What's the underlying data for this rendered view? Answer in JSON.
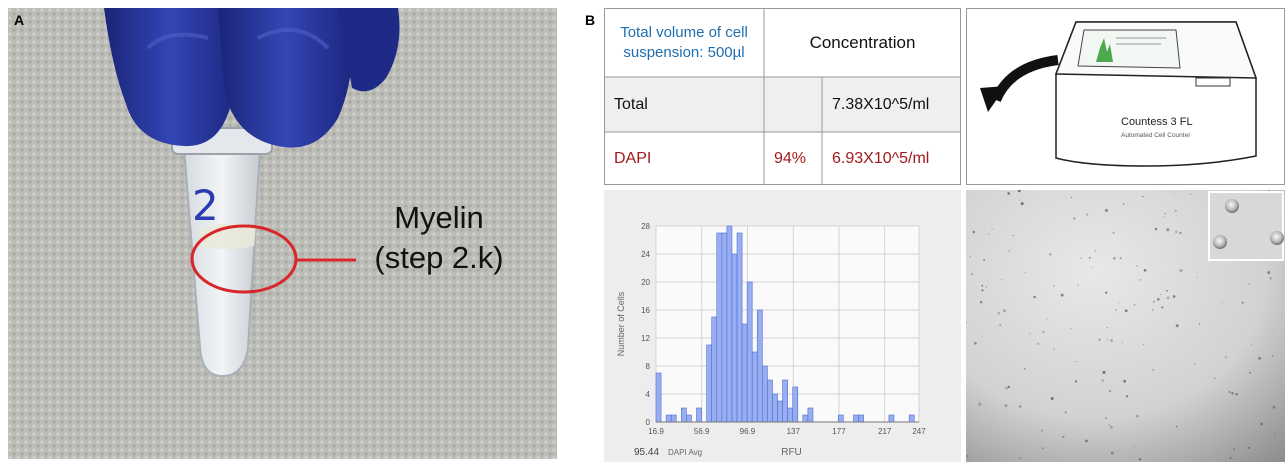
{
  "panels": {
    "a": "A",
    "b": "B"
  },
  "photo": {
    "annotation_line1": "Myelin",
    "annotation_line2": "(step 2.k)",
    "tube_label": "2"
  },
  "table": {
    "header_volume": "Total volume of cell suspension: 500µl",
    "header_concentration": "Concentration",
    "rows": [
      {
        "label": "Total",
        "percent": "",
        "value": "7.38X10^5/ml"
      },
      {
        "label": "DAPI",
        "percent": "94%",
        "value": "6.93X10^5/ml"
      }
    ]
  },
  "device": {
    "brand": "Countess",
    "model": "3 FL",
    "subtitle": "Automated Cell Counter"
  },
  "chart_data": {
    "type": "bar",
    "xlabel": "RFU",
    "ylabel": "Number of Cells",
    "ylim": [
      0,
      28
    ],
    "yticks": [
      "0",
      "4",
      "8",
      "12",
      "16",
      "20",
      "24",
      "28"
    ],
    "xticks": [
      "16.9",
      "56.9",
      "96.9",
      "137",
      "177",
      "217",
      "247"
    ],
    "xlim": [
      16.9,
      247
    ],
    "footer_value": "95.44",
    "footer_label": "DAPI Avg",
    "bin_width": 4.43,
    "values": [
      7,
      0,
      1,
      1,
      0,
      2,
      1,
      0,
      2,
      0,
      11,
      15,
      27,
      27,
      28,
      24,
      27,
      14,
      20,
      10,
      16,
      8,
      6,
      4,
      3,
      6,
      2,
      5,
      0,
      1,
      2,
      0,
      0,
      0,
      0,
      0,
      1,
      0,
      0,
      1,
      1,
      0,
      0,
      0,
      0,
      0,
      1,
      0,
      0,
      0,
      1,
      0
    ]
  },
  "colors": {
    "bar_fill": "#98aef0",
    "bar_stroke": "#4d6fd6",
    "accent_blue": "#1f6fb0",
    "accent_red": "#a11a1a",
    "circle": "#d9262b",
    "glove": "#27359a"
  }
}
